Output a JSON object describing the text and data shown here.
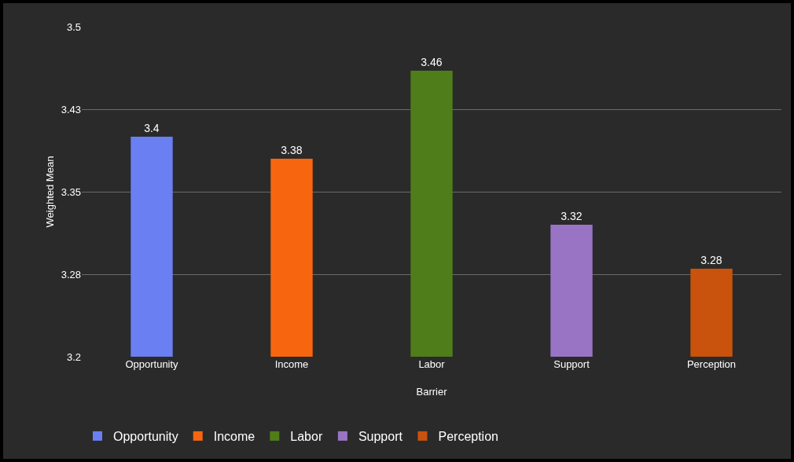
{
  "chart_data": {
    "type": "bar",
    "xlabel": "Barrier",
    "ylabel": "Weighted Mean",
    "categories": [
      "Opportunity",
      "Income",
      "Labor",
      "Support",
      "Perception"
    ],
    "series": [
      {
        "name": "Opportunity",
        "color": "#6a7ff2",
        "values": [
          3.4,
          null,
          null,
          null,
          null
        ]
      },
      {
        "name": "Income",
        "color": "#f7660f",
        "values": [
          null,
          3.38,
          null,
          null,
          null
        ]
      },
      {
        "name": "Labor",
        "color": "#4f7d1a",
        "values": [
          null,
          null,
          3.46,
          null,
          null
        ]
      },
      {
        "name": "Support",
        "color": "#9a74c4",
        "values": [
          null,
          null,
          null,
          3.32,
          null
        ]
      },
      {
        "name": "Perception",
        "color": "#c9520d",
        "values": [
          null,
          null,
          null,
          null,
          3.28
        ]
      }
    ],
    "ylim": [
      3.2,
      3.5
    ],
    "yticks": [
      3.2,
      {
        "value": 3.275,
        "label": "3.28"
      },
      3.35,
      {
        "value": 3.425,
        "label": "3.43"
      },
      3.5
    ],
    "grid": "y",
    "legend": "bottom",
    "data_labels": true
  }
}
